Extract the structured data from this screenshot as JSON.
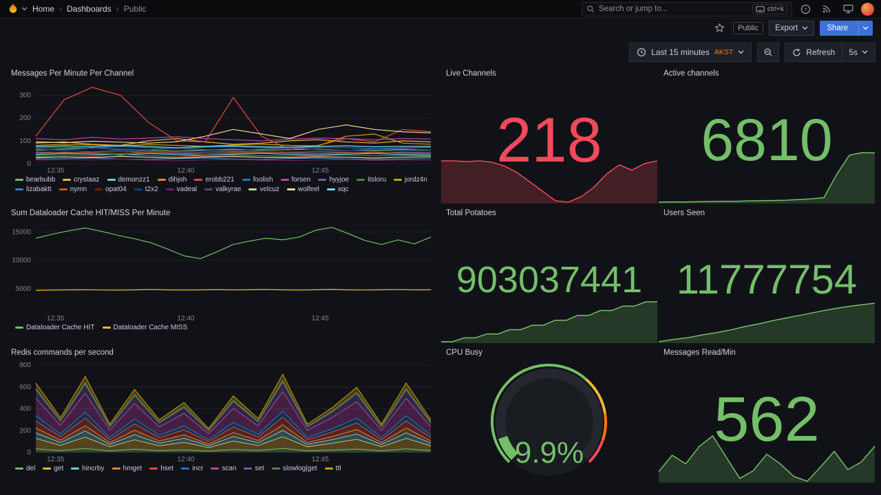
{
  "nav": {
    "breadcrumb": [
      "Home",
      "Dashboards",
      "Public"
    ],
    "separator": "›",
    "search_placeholder": "Search or jump to...",
    "search_shortcut": "ctrl+k"
  },
  "toolbar": {
    "public_badge": "Public",
    "export_label": "Export",
    "share_label": "Share"
  },
  "timebar": {
    "range_label": "Last 15 minutes",
    "timezone": "AKST",
    "refresh_label": "Refresh",
    "interval": "5s"
  },
  "panels": {
    "messages": {
      "title": "Messages Per Minute Per Channel",
      "chart": {
        "type": "line",
        "ylim": [
          0,
          350
        ],
        "yticks": [
          0,
          100,
          200,
          300
        ],
        "xticks": [
          {
            "label": "12:35",
            "f": 0.05
          },
          {
            "label": "12:40",
            "f": 0.38
          },
          {
            "label": "12:45",
            "f": 0.72
          }
        ],
        "series": [
          {
            "name": "bearbubb",
            "color": "#73BF69",
            "values": [
              60,
              65,
              70,
              62,
              58,
              55,
              60,
              63,
              59,
              61,
              64,
              58,
              58,
              62,
              60
            ]
          },
          {
            "name": "crystaaz",
            "color": "#EAB839",
            "values": [
              90,
              95,
              85,
              80,
              100,
              110,
              95,
              85,
              90,
              100,
              105,
              95,
              90,
              100,
              95
            ]
          },
          {
            "name": "demonzz1",
            "color": "#6ED0E0",
            "values": [
              40,
              45,
              42,
              38,
              44,
              40,
              36,
              42,
              45,
              40,
              38,
              42,
              44,
              40,
              38
            ]
          },
          {
            "name": "dihjoh",
            "color": "#EF843C",
            "values": [
              25,
              30,
              28,
              32,
              27,
              25,
              30,
              28,
              26,
              30,
              32,
              28,
              26,
              28,
              30
            ]
          },
          {
            "name": "erobb221",
            "color": "#E24D42",
            "values": [
              120,
              280,
              335,
              300,
              180,
              100,
              95,
              290,
              120,
              60,
              80,
              110,
              95,
              150,
              140
            ]
          },
          {
            "name": "foolish",
            "color": "#1F78C1",
            "values": [
              70,
              72,
              68,
              75,
              70,
              65,
              72,
              74,
              70,
              68,
              72,
              70,
              66,
              70,
              72
            ]
          },
          {
            "name": "forsen",
            "color": "#BA43A9",
            "values": [
              110,
              105,
              115,
              108,
              112,
              118,
              110,
              105,
              100,
              108,
              112,
              110,
              105,
              110,
              108
            ]
          },
          {
            "name": "hyyjoe",
            "color": "#705DA0",
            "values": [
              50,
              48,
              52,
              55,
              50,
              46,
              50,
              53,
              50,
              48,
              52,
              50,
              46,
              50,
              48
            ]
          },
          {
            "name": "itsloru",
            "color": "#508642",
            "values": [
              35,
              38,
              36,
              40,
              35,
              32,
              36,
              38,
              35,
              33,
              36,
              38,
              34,
              36,
              35
            ]
          },
          {
            "name": "jordz4n",
            "color": "#CCA300",
            "values": [
              80,
              85,
              82,
              78,
              84,
              80,
              76,
              82,
              85,
              80,
              78,
              120,
              130,
              90,
              85
            ]
          },
          {
            "name": "lizabaktt",
            "color": "#447EBC",
            "values": [
              20,
              22,
              25,
              20,
              18,
              22,
              24,
              20,
              18,
              22,
              24,
              20,
              18,
              20,
              22
            ]
          },
          {
            "name": "nymn",
            "color": "#C15C17",
            "values": [
              45,
              50,
              48,
              44,
              50,
              46,
              42,
              48,
              50,
              46,
              44,
              48,
              50,
              46,
              44
            ]
          },
          {
            "name": "opat04",
            "color": "#890F02",
            "values": [
              30,
              28,
              32,
              30,
              26,
              30,
              32,
              28,
              26,
              30,
              32,
              28,
              26,
              28,
              30
            ]
          },
          {
            "name": "t2x2",
            "color": "#0A437C",
            "values": [
              55,
              58,
              54,
              60,
              55,
              50,
              56,
              58,
              54,
              52,
              56,
              58,
              54,
              56,
              55
            ]
          },
          {
            "name": "vadeal",
            "color": "#6D1F62",
            "values": [
              15,
              18,
              16,
              20,
              15,
              12,
              16,
              18,
              15,
              13,
              16,
              18,
              14,
              16,
              15
            ]
          },
          {
            "name": "valkyrae",
            "color": "#584477",
            "values": [
              65,
              60,
              68,
              64,
              60,
              66,
              62,
              58,
              64,
              68,
              62,
              58,
              64,
              66,
              60
            ]
          },
          {
            "name": "velcuz",
            "color": "#B7DBAB",
            "values": [
              28,
              30,
              26,
              32,
              28,
              24,
              30,
              32,
              28,
              26,
              30,
              28,
              24,
              28,
              30
            ]
          },
          {
            "name": "wolfeel",
            "color": "#F4D598",
            "values": [
              95,
              92,
              98,
              94,
              90,
              96,
              120,
              150,
              130,
              110,
              150,
              170,
              150,
              140,
              135
            ]
          },
          {
            "name": "xqc",
            "color": "#70DBED",
            "values": [
              75,
              78,
              74,
              80,
              75,
              70,
              76,
              78,
              74,
              72,
              76,
              78,
              74,
              76,
              75
            ]
          }
        ]
      }
    },
    "dataloader": {
      "title": "Sum Dataloader Cache HIT/MISS Per Minute",
      "chart": {
        "type": "line",
        "ylim": [
          1000,
          16500
        ],
        "yticks": [
          5000,
          10000,
          15000
        ],
        "xticks": [
          {
            "label": "12:35",
            "f": 0.05
          },
          {
            "label": "12:40",
            "f": 0.38
          },
          {
            "label": "12:45",
            "f": 0.72
          }
        ],
        "series": [
          {
            "name": "Dataloader Cache HIT",
            "color": "#73BF69",
            "values": [
              13900,
              14600,
              15200,
              15700,
              15100,
              14400,
              13800,
              13100,
              12000,
              10800,
              10300,
              11500,
              12800,
              13400,
              13900,
              13600,
              14100,
              15300,
              15800,
              14700,
              13500,
              12800,
              13600,
              12900,
              14100
            ]
          },
          {
            "name": "Dataloader Cache MISS",
            "color": "#EAB839",
            "values": [
              4700,
              4760,
              4800,
              4820,
              4780,
              4750,
              4800,
              4850,
              4800,
              4760,
              4800,
              4830,
              4790,
              4810,
              4850,
              4800,
              4770,
              4820,
              4860,
              4800,
              4780,
              4810,
              4840,
              4800,
              4820
            ]
          }
        ]
      }
    },
    "redis": {
      "title": "Redis commands per second",
      "chart": {
        "type": "stacked",
        "ylim": [
          0,
          820
        ],
        "yticks": [
          0,
          200,
          400,
          600,
          800
        ],
        "xticks": [
          {
            "label": "12:35",
            "f": 0.05
          },
          {
            "label": "12:40",
            "f": 0.38
          },
          {
            "label": "12:45",
            "f": 0.72
          }
        ],
        "series": [
          {
            "name": "del",
            "color": "#73BF69",
            "values": [
              32,
              16,
              35,
              13,
              29,
              15,
              23,
              11,
              26,
              16,
              36,
              13,
              21,
              30,
              13,
              32,
              15
            ]
          },
          {
            "name": "get",
            "color": "#EAB839",
            "values": [
              96,
              48,
              105,
              39,
              87,
              45,
              69,
              33,
              78,
              47,
              108,
              39,
              62,
              90,
              39,
              96,
              45
            ]
          },
          {
            "name": "hincrby",
            "color": "#6ED0E0",
            "values": [
              51,
              26,
              56,
              21,
              46,
              24,
              37,
              18,
              42,
              25,
              58,
              21,
              33,
              48,
              21,
              51,
              24
            ]
          },
          {
            "name": "hmget",
            "color": "#EF843C",
            "values": [
              45,
              22,
              49,
              18,
              41,
              21,
              32,
              15,
              36,
              22,
              50,
              18,
              29,
              42,
              18,
              45,
              21
            ]
          },
          {
            "name": "hset",
            "color": "#E24D42",
            "values": [
              64,
              32,
              70,
              26,
              58,
              30,
              46,
              22,
              52,
              31,
              72,
              26,
              41,
              60,
              26,
              64,
              30
            ]
          },
          {
            "name": "incr",
            "color": "#1F78C1",
            "values": [
              48,
              24,
              53,
              20,
              44,
              23,
              35,
              17,
              40,
              24,
              55,
              20,
              31,
              45,
              20,
              48,
              23
            ]
          },
          {
            "name": "scan",
            "color": "#BA43A9",
            "values": [
              160,
              80,
              175,
              65,
              145,
              75,
              115,
              55,
              130,
              78,
              180,
              65,
              103,
              150,
              65,
              160,
              75
            ]
          },
          {
            "name": "set",
            "color": "#705DA0",
            "values": [
              77,
              38,
              84,
              31,
              70,
              36,
              55,
              26,
              62,
              37,
              86,
              31,
              49,
              72,
              31,
              77,
              36
            ]
          },
          {
            "name": "slowlog|get",
            "color": "#508642",
            "values": [
              13,
              6,
              14,
              5,
              12,
              6,
              9,
              4,
              10,
              6,
              14,
              5,
              8,
              12,
              5,
              13,
              6
            ]
          },
          {
            "name": "ttl",
            "color": "#CCA300",
            "values": [
              51,
              26,
              56,
              21,
              46,
              24,
              37,
              18,
              42,
              25,
              58,
              21,
              33,
              48,
              21,
              51,
              24
            ]
          }
        ]
      }
    },
    "live_channels": {
      "title": "Live Channels",
      "value": "218",
      "color": "#F2495C",
      "spark": [
        232,
        232,
        231,
        232,
        230,
        224,
        214,
        200,
        186,
        172,
        170,
        178,
        192,
        212,
        226,
        218,
        228,
        232
      ]
    },
    "total_potatoes": {
      "title": "Total Potatoes",
      "value": "903037441",
      "color": "#73BF69",
      "spark": [
        902310000,
        902310000,
        902380000,
        902380000,
        902450000,
        902450000,
        902530000,
        902530000,
        902610000,
        902610000,
        902700000,
        902700000,
        902790000,
        902790000,
        902880000,
        902880000,
        902960000,
        902960000,
        903037441,
        903037441
      ]
    },
    "cpu_busy": {
      "title": "CPU Busy",
      "value": "9.9%",
      "percent": 9.9,
      "color": "#73BF69",
      "thresholds": [
        {
          "to": 65,
          "color": "#73BF69"
        },
        {
          "to": 80,
          "color": "#EAB839"
        },
        {
          "to": 90,
          "color": "#FF780A"
        },
        {
          "to": 100,
          "color": "#F2495C"
        }
      ]
    },
    "active_channels": {
      "title": "Active channels",
      "value": "6810",
      "color": "#73BF69",
      "spark": [
        6425,
        6427,
        6426,
        6428,
        6430,
        6432,
        6431,
        6434,
        6436,
        6438,
        6440,
        6445,
        6450,
        6460,
        6640,
        6790,
        6810,
        6808
      ]
    },
    "users_seen": {
      "title": "Users Seen",
      "value": "11777754",
      "color": "#73BF69",
      "spark": [
        11770900,
        11771300,
        11771600,
        11772100,
        11772500,
        11773000,
        11773600,
        11774100,
        11774700,
        11775200,
        11775700,
        11776200,
        11776700,
        11777100,
        11777450,
        11777754
      ]
    },
    "messages_read": {
      "title": "Messages Read/Min",
      "value": "562",
      "color": "#73BF69",
      "spark": [
        430,
        515,
        470,
        560,
        615,
        505,
        395,
        435,
        520,
        470,
        405,
        380,
        455,
        535,
        440,
        480,
        562
      ]
    }
  }
}
